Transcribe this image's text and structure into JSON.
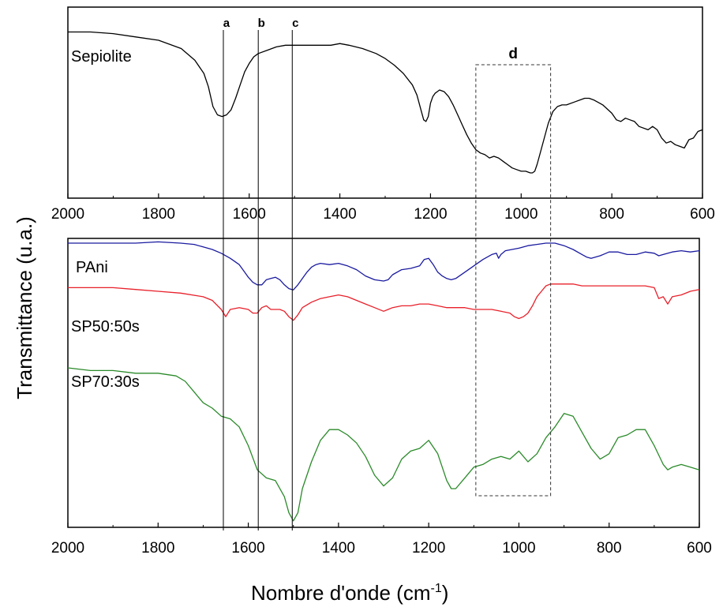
{
  "chart_data": [
    {
      "type": "line",
      "xlabel": "Nombre d'onde (cm",
      "xlabel_sup": "-1",
      "xlabel_close": ")",
      "ylabel": "Transmittance (u.a.)",
      "xlim": [
        2000,
        600
      ],
      "x_reversed": true,
      "x_ticks": [
        "2000",
        "1800",
        "1600",
        "1400",
        "1200",
        "1000",
        "800",
        "600"
      ],
      "ylim": [
        0,
        1
      ],
      "series": [
        {
          "name": "Sepiolite",
          "color": "#000000",
          "x": [
            2000,
            1950,
            1900,
            1850,
            1800,
            1750,
            1720,
            1700,
            1690,
            1680,
            1670,
            1660,
            1650,
            1640,
            1630,
            1620,
            1610,
            1600,
            1590,
            1580,
            1560,
            1540,
            1520,
            1500,
            1480,
            1450,
            1420,
            1400,
            1380,
            1350,
            1320,
            1300,
            1280,
            1260,
            1240,
            1230,
            1220,
            1215,
            1210,
            1205,
            1200,
            1195,
            1190,
            1185,
            1180,
            1170,
            1160,
            1150,
            1140,
            1130,
            1120,
            1110,
            1100,
            1090,
            1080,
            1070,
            1060,
            1050,
            1040,
            1030,
            1020,
            1010,
            1000,
            990,
            980,
            975,
            970,
            965,
            960,
            950,
            940,
            930,
            920,
            910,
            900,
            880,
            860,
            850,
            840,
            820,
            800,
            790,
            780,
            770,
            760,
            750,
            740,
            720,
            710,
            700,
            690,
            680,
            670,
            660,
            650,
            640,
            630,
            620,
            610,
            600
          ],
          "y": [
            0.95,
            0.95,
            0.94,
            0.92,
            0.9,
            0.85,
            0.78,
            0.7,
            0.62,
            0.5,
            0.45,
            0.44,
            0.45,
            0.48,
            0.55,
            0.63,
            0.71,
            0.76,
            0.8,
            0.82,
            0.84,
            0.86,
            0.87,
            0.87,
            0.87,
            0.87,
            0.87,
            0.88,
            0.87,
            0.85,
            0.82,
            0.79,
            0.75,
            0.7,
            0.63,
            0.57,
            0.47,
            0.42,
            0.41,
            0.44,
            0.52,
            0.56,
            0.58,
            0.59,
            0.6,
            0.59,
            0.56,
            0.51,
            0.45,
            0.39,
            0.33,
            0.28,
            0.24,
            0.22,
            0.21,
            0.19,
            0.2,
            0.19,
            0.17,
            0.15,
            0.13,
            0.12,
            0.11,
            0.11,
            0.1,
            0.1,
            0.11,
            0.15,
            0.2,
            0.3,
            0.4,
            0.47,
            0.5,
            0.51,
            0.51,
            0.53,
            0.55,
            0.55,
            0.54,
            0.51,
            0.46,
            0.42,
            0.41,
            0.43,
            0.42,
            0.41,
            0.38,
            0.36,
            0.38,
            0.36,
            0.31,
            0.28,
            0.29,
            0.27,
            0.26,
            0.25,
            0.3,
            0.31,
            0.35,
            0.36
          ]
        },
        {
          "name": "PAni",
          "color": "#1a1aa0",
          "x": [
            2000,
            1950,
            1900,
            1850,
            1800,
            1750,
            1720,
            1700,
            1680,
            1660,
            1640,
            1620,
            1610,
            1600,
            1590,
            1580,
            1570,
            1560,
            1550,
            1540,
            1530,
            1520,
            1510,
            1500,
            1490,
            1480,
            1470,
            1460,
            1450,
            1440,
            1420,
            1400,
            1380,
            1360,
            1340,
            1320,
            1300,
            1290,
            1280,
            1260,
            1240,
            1220,
            1210,
            1200,
            1190,
            1180,
            1170,
            1160,
            1150,
            1140,
            1120,
            1100,
            1080,
            1060,
            1050,
            1045,
            1040,
            1030,
            1000,
            980,
            960,
            940,
            930,
            920,
            910,
            900,
            880,
            860,
            850,
            840,
            820,
            800,
            780,
            760,
            740,
            720,
            700,
            690,
            680,
            660,
            640,
            620,
            600
          ],
          "y": [
            0.95,
            0.95,
            0.95,
            0.95,
            0.96,
            0.95,
            0.94,
            0.92,
            0.9,
            0.87,
            0.83,
            0.78,
            0.73,
            0.68,
            0.64,
            0.62,
            0.62,
            0.66,
            0.67,
            0.68,
            0.66,
            0.62,
            0.59,
            0.58,
            0.62,
            0.67,
            0.72,
            0.76,
            0.78,
            0.79,
            0.78,
            0.79,
            0.77,
            0.74,
            0.69,
            0.66,
            0.65,
            0.66,
            0.7,
            0.74,
            0.75,
            0.77,
            0.82,
            0.83,
            0.78,
            0.72,
            0.69,
            0.67,
            0.66,
            0.67,
            0.72,
            0.77,
            0.82,
            0.86,
            0.87,
            0.83,
            0.86,
            0.89,
            0.91,
            0.93,
            0.94,
            0.95,
            0.95,
            0.95,
            0.94,
            0.93,
            0.9,
            0.86,
            0.84,
            0.83,
            0.85,
            0.88,
            0.88,
            0.86,
            0.86,
            0.88,
            0.87,
            0.85,
            0.86,
            0.88,
            0.89,
            0.88,
            0.89
          ]
        },
        {
          "name": "SP50:50s",
          "color": "#e8202a",
          "x": [
            2000,
            1950,
            1900,
            1850,
            1800,
            1750,
            1700,
            1680,
            1660,
            1650,
            1640,
            1620,
            1600,
            1590,
            1580,
            1570,
            1560,
            1550,
            1540,
            1530,
            1520,
            1510,
            1500,
            1490,
            1480,
            1460,
            1440,
            1420,
            1400,
            1380,
            1360,
            1340,
            1320,
            1300,
            1290,
            1280,
            1260,
            1240,
            1220,
            1200,
            1180,
            1160,
            1140,
            1120,
            1100,
            1080,
            1060,
            1040,
            1020,
            1010,
            1000,
            990,
            980,
            970,
            960,
            950,
            940,
            930,
            920,
            900,
            880,
            860,
            840,
            820,
            800,
            780,
            760,
            740,
            720,
            700,
            690,
            680,
            670,
            660,
            640,
            620,
            600
          ],
          "y": [
            0.72,
            0.72,
            0.72,
            0.71,
            0.7,
            0.69,
            0.67,
            0.65,
            0.6,
            0.56,
            0.6,
            0.61,
            0.6,
            0.58,
            0.58,
            0.61,
            0.62,
            0.6,
            0.6,
            0.6,
            0.59,
            0.56,
            0.54,
            0.57,
            0.61,
            0.64,
            0.66,
            0.67,
            0.68,
            0.67,
            0.65,
            0.63,
            0.61,
            0.59,
            0.6,
            0.61,
            0.62,
            0.62,
            0.63,
            0.63,
            0.62,
            0.61,
            0.61,
            0.61,
            0.6,
            0.6,
            0.6,
            0.59,
            0.58,
            0.56,
            0.55,
            0.56,
            0.58,
            0.62,
            0.67,
            0.7,
            0.73,
            0.74,
            0.74,
            0.74,
            0.74,
            0.73,
            0.73,
            0.73,
            0.73,
            0.73,
            0.73,
            0.73,
            0.73,
            0.72,
            0.66,
            0.67,
            0.63,
            0.67,
            0.68,
            0.7,
            0.71
          ]
        },
        {
          "name": "SP70:30s",
          "color": "#2a8a2a",
          "x": [
            2000,
            1950,
            1900,
            1850,
            1800,
            1760,
            1740,
            1720,
            1700,
            1680,
            1660,
            1640,
            1620,
            1600,
            1580,
            1560,
            1540,
            1520,
            1510,
            1500,
            1490,
            1480,
            1460,
            1440,
            1420,
            1400,
            1380,
            1360,
            1340,
            1320,
            1300,
            1280,
            1260,
            1240,
            1220,
            1200,
            1180,
            1160,
            1150,
            1140,
            1120,
            1100,
            1080,
            1060,
            1040,
            1020,
            1000,
            980,
            960,
            940,
            920,
            900,
            880,
            860,
            840,
            820,
            800,
            780,
            760,
            740,
            720,
            700,
            680,
            670,
            660,
            640,
            620,
            600
          ],
          "y": [
            0.6,
            0.59,
            0.59,
            0.58,
            0.58,
            0.57,
            0.55,
            0.51,
            0.47,
            0.45,
            0.42,
            0.41,
            0.38,
            0.31,
            0.22,
            0.19,
            0.18,
            0.12,
            0.06,
            0.03,
            0.06,
            0.15,
            0.25,
            0.33,
            0.37,
            0.37,
            0.35,
            0.32,
            0.27,
            0.2,
            0.16,
            0.19,
            0.26,
            0.29,
            0.3,
            0.33,
            0.28,
            0.18,
            0.15,
            0.15,
            0.19,
            0.23,
            0.24,
            0.26,
            0.27,
            0.26,
            0.29,
            0.25,
            0.28,
            0.34,
            0.38,
            0.43,
            0.42,
            0.36,
            0.3,
            0.26,
            0.28,
            0.34,
            0.35,
            0.37,
            0.37,
            0.31,
            0.24,
            0.22,
            0.23,
            0.24,
            0.23,
            0.22
          ]
        }
      ],
      "markers": [
        {
          "label": "a",
          "x": 1657
        },
        {
          "label": "b",
          "x": 1580
        },
        {
          "label": "c",
          "x": 1505
        }
      ],
      "region": {
        "label": "d",
        "x_from": 1100,
        "x_to": 935
      }
    }
  ]
}
